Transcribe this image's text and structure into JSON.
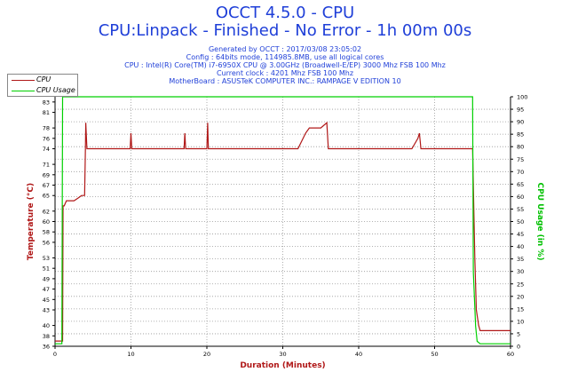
{
  "header": {
    "title": "OCCT 4.5.0 - CPU",
    "subtitle": "CPU:Linpack - Finished - No Error - 1h 00m 00s",
    "info_lines": [
      "Generated by OCCT : 2017/03/08 23:05:02",
      "Config : 64bits mode, 114985.8MB, use all logical cores",
      "CPU : Intel(R) Core(TM) i7-6950X CPU @ 3.00GHz (Broadwell-E/EP) 3000 Mhz FSB 100 Mhz",
      "Current clock : 4201 Mhz FSB 100 Mhz",
      "MotherBoard : ASUSTeK COMPUTER INC.: RAMPAGE V EDITION 10"
    ]
  },
  "legend": [
    {
      "label": "CPU",
      "color": "#b01818"
    },
    {
      "label": "CPU Usage",
      "color": "#00d000"
    }
  ],
  "chart_data": {
    "type": "line",
    "xlabel": "Duration (Minutes)",
    "ylabel": "Temperature (°C)",
    "y2label": "CPU Usage (in %)",
    "xlim": [
      0,
      60
    ],
    "ylim": [
      36,
      84
    ],
    "y2lim": [
      0,
      100
    ],
    "x_ticks": [
      0,
      10,
      20,
      30,
      40,
      50,
      60
    ],
    "y_ticks": [
      36,
      38,
      40,
      43,
      45,
      47,
      49,
      51,
      53,
      56,
      58,
      60,
      62,
      65,
      67,
      69,
      71,
      74,
      76,
      78,
      81,
      83
    ],
    "y2_ticks": [
      0,
      5,
      10,
      15,
      20,
      25,
      30,
      35,
      40,
      45,
      50,
      55,
      60,
      65,
      70,
      75,
      80,
      85,
      90,
      95,
      100
    ],
    "grid": true,
    "series": [
      {
        "name": "CPU",
        "color": "#b01818",
        "axis": "left",
        "x": [
          0,
          0.6,
          1.0,
          1.05,
          1.2,
          1.5,
          2.0,
          2.5,
          3.0,
          3.5,
          3.9,
          4.0,
          4.05,
          4.2,
          5.0,
          6.0,
          8.0,
          9.9,
          10.0,
          10.1,
          12.0,
          15.0,
          17.0,
          17.1,
          17.2,
          18.0,
          19.0,
          20.0,
          20.1,
          20.2,
          21.0,
          24.0,
          26.0,
          28.0,
          30.0,
          32.0,
          33.0,
          33.5,
          34.0,
          35.0,
          35.8,
          36.0,
          37.0,
          40.0,
          42.0,
          45.0,
          47.0,
          47.8,
          48.0,
          48.2,
          50.0,
          53.0,
          55.0,
          55.3,
          55.5,
          55.8,
          56.0,
          57.0,
          58.0,
          60.0
        ],
        "y": [
          37,
          37,
          37,
          63,
          63,
          64,
          64,
          64,
          64.5,
          65,
          65,
          74,
          79,
          74,
          74,
          74,
          74,
          74,
          77,
          74,
          74,
          74,
          74,
          77,
          74,
          74,
          74,
          74,
          79,
          74,
          74,
          74,
          74,
          74,
          74,
          74,
          77,
          78,
          78,
          78,
          79,
          74,
          74,
          74,
          74,
          74,
          74,
          76,
          77,
          74,
          74,
          74,
          74,
          53,
          43,
          40,
          39,
          39,
          39,
          39
        ]
      },
      {
        "name": "CPU Usage",
        "color": "#00d000",
        "axis": "right",
        "x": [
          0,
          0.9,
          1.0,
          1.2,
          55.0,
          55.1,
          55.4,
          55.6,
          56.0,
          60.0
        ],
        "y": [
          1,
          1,
          100,
          100,
          100,
          30,
          8,
          2,
          1,
          1
        ]
      }
    ]
  }
}
